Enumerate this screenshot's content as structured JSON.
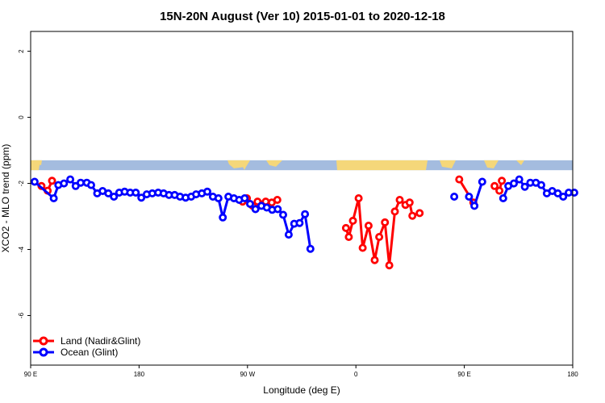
{
  "chart_data": {
    "type": "line",
    "title": "15N-20N August (Ver 10)   2015-01-01 to 2020-12-18",
    "xlabel": "Longitude (deg E)",
    "ylabel": "XCO2 - MLO trend (ppm)",
    "xlim": [
      90,
      450
    ],
    "ylim": [
      -7.5,
      2.6
    ],
    "x_ticks": [
      {
        "value": 90,
        "label": "90 E"
      },
      {
        "value": 162,
        "label": "180"
      },
      {
        "value": 234,
        "label": "90 W"
      },
      {
        "value": 306,
        "label": "0"
      },
      {
        "value": 378,
        "label": "90 E"
      },
      {
        "value": 450,
        "label": "180"
      }
    ],
    "y_ticks": [
      {
        "value": 2,
        "label": "2"
      },
      {
        "value": 0,
        "label": "0"
      },
      {
        "value": -2,
        "label": "-2"
      },
      {
        "value": -4,
        "label": "-4"
      },
      {
        "value": -6,
        "label": "-6"
      }
    ],
    "map_strip": {
      "ymin": -1.6,
      "ymax": -1.3,
      "ocean_color": "#a4bcdf",
      "land_color": "#f5d77a"
    },
    "series": [
      {
        "name": "Land (Nadir&Glint)",
        "color": "#ff0000",
        "points": [
          [
            97.2,
            -2.08
          ],
          [
            101.3,
            -2.22
          ],
          [
            104.2,
            -1.92
          ],
          null,
          [
            230.8,
            -2.55
          ],
          [
            233.6,
            -2.45
          ],
          [
            237.5,
            -2.68
          ],
          null,
          [
            240.7,
            -2.55
          ],
          [
            246.1,
            -2.55
          ],
          [
            250.1,
            -2.58
          ],
          [
            253.8,
            -2.5
          ],
          null,
          [
            299.4,
            -3.35
          ],
          [
            301.3,
            -3.62
          ],
          [
            304.0,
            -3.13
          ],
          [
            307.8,
            -2.45
          ],
          [
            310.5,
            -3.95
          ],
          [
            314.4,
            -3.28
          ],
          [
            318.5,
            -4.32
          ],
          [
            321.5,
            -3.62
          ],
          [
            325.3,
            -3.18
          ],
          [
            328.2,
            -4.48
          ],
          [
            331.9,
            -2.85
          ],
          [
            335.1,
            -2.5
          ],
          [
            338.9,
            -2.65
          ],
          [
            341.7,
            -2.58
          ],
          [
            343.5,
            -2.98
          ],
          [
            348.3,
            -2.9
          ],
          null,
          [
            374.6,
            -1.88
          ],
          [
            384.0,
            -2.58
          ],
          null,
          [
            398.1,
            -2.08
          ],
          [
            401.3,
            -2.22
          ],
          [
            402.9,
            -1.92
          ]
        ]
      },
      {
        "name": "Ocean (Glint)",
        "color": "#0000ff",
        "points": [
          [
            92.6,
            -1.95
          ],
          [
            105.3,
            -2.45
          ],
          [
            108.4,
            -2.05
          ],
          [
            112.1,
            -2.0
          ],
          [
            116.3,
            -1.88
          ],
          [
            119.9,
            -2.08
          ],
          [
            123.2,
            -1.98
          ],
          [
            127.3,
            -1.98
          ],
          [
            130.2,
            -2.05
          ],
          [
            134.2,
            -2.3
          ],
          [
            137.8,
            -2.23
          ],
          [
            141.6,
            -2.3
          ],
          [
            145.3,
            -2.4
          ],
          [
            148.8,
            -2.28
          ],
          [
            152.4,
            -2.25
          ],
          [
            156.1,
            -2.28
          ],
          [
            159.8,
            -2.28
          ],
          [
            163.5,
            -2.43
          ],
          [
            167.1,
            -2.33
          ],
          [
            170.8,
            -2.3
          ],
          [
            174.7,
            -2.28
          ],
          [
            178.3,
            -2.3
          ],
          [
            181.9,
            -2.35
          ],
          [
            185.6,
            -2.35
          ],
          [
            189.2,
            -2.4
          ],
          [
            192.9,
            -2.43
          ],
          [
            196.6,
            -2.4
          ],
          [
            199.9,
            -2.33
          ],
          [
            203.7,
            -2.3
          ],
          [
            207.3,
            -2.25
          ],
          [
            211.0,
            -2.4
          ],
          [
            214.7,
            -2.45
          ],
          [
            217.6,
            -3.03
          ],
          [
            221.3,
            -2.4
          ],
          [
            225.0,
            -2.45
          ],
          [
            228.5,
            -2.5
          ],
          [
            232.1,
            -2.45
          ],
          [
            235.7,
            -2.62
          ],
          [
            239.3,
            -2.78
          ],
          [
            243.2,
            -2.68
          ],
          [
            246.8,
            -2.73
          ],
          [
            250.4,
            -2.8
          ],
          [
            254.1,
            -2.78
          ],
          [
            257.7,
            -2.95
          ],
          [
            261.4,
            -3.55
          ],
          [
            265.0,
            -3.22
          ],
          [
            268.6,
            -3.2
          ],
          [
            272.2,
            -2.93
          ],
          [
            275.8,
            -3.98
          ],
          null,
          [
            371.3,
            -2.4
          ],
          null,
          [
            381.1,
            -2.4
          ],
          [
            384.7,
            -2.68
          ],
          [
            389.9,
            -1.95
          ],
          null,
          [
            403.8,
            -2.45
          ],
          [
            407.2,
            -2.08
          ],
          [
            410.9,
            -2.0
          ],
          [
            414.5,
            -1.88
          ],
          [
            418.2,
            -2.1
          ],
          [
            421.8,
            -1.98
          ],
          [
            425.5,
            -1.98
          ],
          [
            429.1,
            -2.05
          ],
          [
            432.8,
            -2.3
          ],
          [
            436.4,
            -2.23
          ],
          [
            440.1,
            -2.3
          ],
          [
            443.7,
            -2.4
          ],
          [
            447.3,
            -2.28
          ],
          [
            451.0,
            -2.28
          ]
        ]
      }
    ]
  }
}
